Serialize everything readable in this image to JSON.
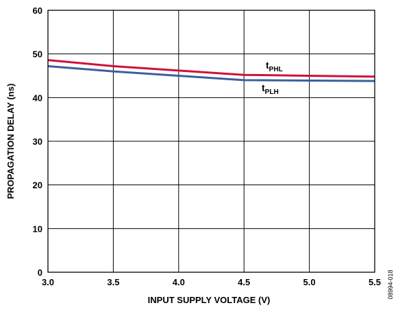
{
  "chart_data": {
    "type": "line",
    "xlabel": "INPUT SUPPLY VOLTAGE (V)",
    "ylabel": "PROPAGATION DELAY (ns)",
    "xlim": [
      3.0,
      5.5
    ],
    "ylim": [
      0,
      60
    ],
    "x_ticks": [
      "3.0",
      "3.5",
      "4.0",
      "4.5",
      "5.0",
      "5.5"
    ],
    "y_ticks": [
      "0",
      "10",
      "20",
      "30",
      "40",
      "50",
      "60"
    ],
    "grid": true,
    "series": [
      {
        "name": "t_PHL",
        "label_main": "t",
        "label_sub": "PHL",
        "color": "#d0103a",
        "x": [
          3.0,
          3.5,
          4.0,
          4.5,
          5.0,
          5.5
        ],
        "y": [
          48.6,
          47.2,
          46.2,
          45.2,
          45.0,
          44.8
        ]
      },
      {
        "name": "t_PLH",
        "label_main": "t",
        "label_sub": "PLH",
        "color": "#3a5fa0",
        "x": [
          3.0,
          3.5,
          4.0,
          4.5,
          5.0,
          5.5
        ],
        "y": [
          47.2,
          46.0,
          45.0,
          44.0,
          43.9,
          43.8
        ]
      }
    ],
    "figure_id": "08994-018"
  }
}
